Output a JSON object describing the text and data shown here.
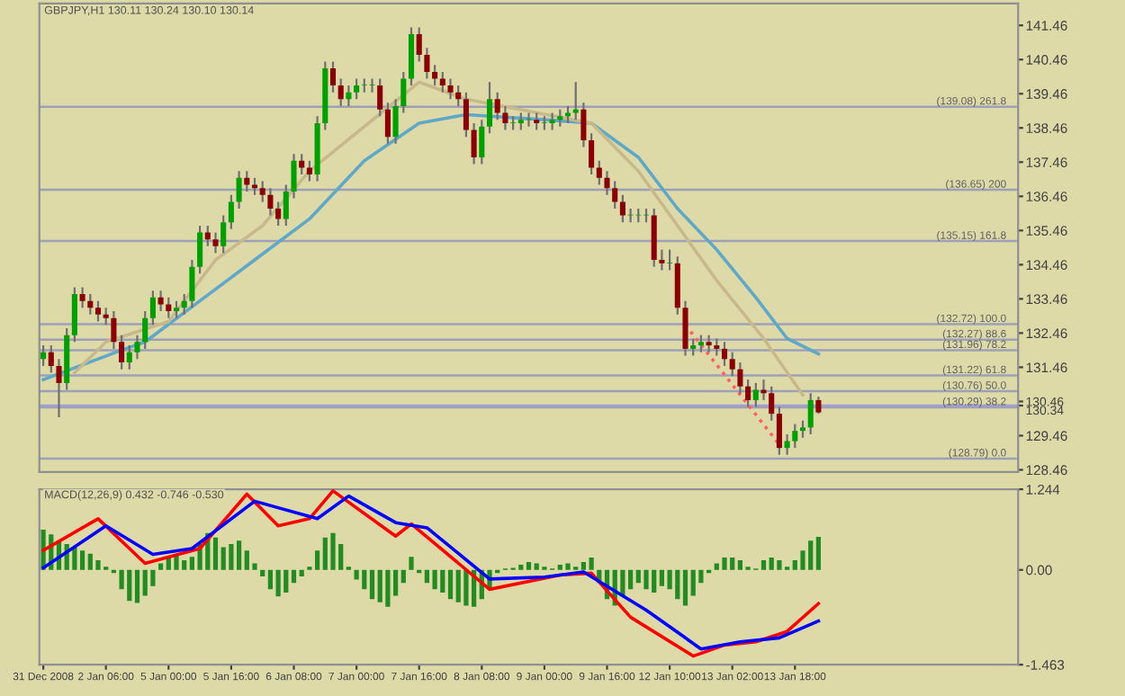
{
  "chart_data": [
    {
      "type": "candlestick",
      "title": "GBPJPY,H1 130.11 130.24 130.10 130.14",
      "categories": [
        null,
        null,
        null,
        null,
        null,
        null,
        null,
        null,
        null,
        null,
        null,
        null,
        null,
        null,
        null,
        null,
        null,
        null,
        null,
        null,
        null,
        null,
        null,
        null,
        null,
        null,
        null,
        null,
        null,
        null,
        null,
        null,
        null,
        null,
        null,
        null,
        null,
        null,
        null,
        null,
        null,
        null,
        null,
        null,
        null,
        null,
        null,
        null,
        null,
        null,
        null,
        null,
        null,
        null,
        null,
        null,
        null,
        null,
        null,
        null,
        null,
        null,
        null,
        null,
        null,
        null,
        null,
        null,
        null,
        null,
        null,
        null,
        null,
        null,
        null,
        null,
        null,
        null,
        null,
        null,
        null,
        null,
        null,
        null,
        null,
        null,
        null,
        null,
        null,
        null,
        null,
        null,
        null,
        null,
        null,
        null,
        null,
        null,
        null,
        null,
        null,
        null,
        null,
        null,
        null,
        null,
        null,
        null,
        null,
        null,
        null,
        null,
        null,
        null,
        null,
        null,
        null,
        null,
        null,
        null,
        null,
        null,
        null,
        null,
        null
      ],
      "ohlc": [
        [
          131.7,
          132.1,
          131.5,
          131.9
        ],
        [
          131.9,
          132.1,
          131.3,
          131.5
        ],
        [
          131.5,
          131.7,
          130.0,
          131.0
        ],
        [
          131.0,
          132.6,
          130.8,
          132.4
        ],
        [
          132.4,
          133.8,
          132.2,
          133.6
        ],
        [
          133.6,
          133.8,
          133.2,
          133.4
        ],
        [
          133.4,
          133.6,
          133.0,
          133.2
        ],
        [
          133.2,
          133.4,
          132.8,
          133.0
        ],
        [
          133.0,
          133.2,
          132.7,
          132.9
        ],
        [
          132.9,
          133.1,
          132.0,
          132.2
        ],
        [
          132.2,
          132.4,
          131.4,
          131.6
        ],
        [
          131.6,
          132.1,
          131.4,
          131.9
        ],
        [
          131.9,
          132.4,
          131.7,
          132.2
        ],
        [
          132.2,
          133.1,
          132.0,
          132.9
        ],
        [
          132.9,
          133.7,
          132.7,
          133.5
        ],
        [
          133.5,
          133.7,
          133.1,
          133.3
        ],
        [
          133.3,
          133.5,
          132.9,
          133.1
        ],
        [
          133.1,
          133.4,
          132.9,
          133.2
        ],
        [
          133.2,
          133.6,
          133.0,
          133.4
        ],
        [
          133.4,
          134.6,
          133.2,
          134.4
        ],
        [
          134.4,
          135.6,
          134.2,
          135.4
        ],
        [
          135.4,
          135.6,
          135.0,
          135.2
        ],
        [
          135.2,
          135.4,
          134.8,
          135.0
        ],
        [
          135.0,
          135.9,
          134.8,
          135.7
        ],
        [
          135.7,
          136.5,
          135.5,
          136.3
        ],
        [
          136.3,
          137.2,
          136.1,
          137.0
        ],
        [
          137.0,
          137.2,
          136.6,
          136.8
        ],
        [
          136.8,
          137.0,
          136.5,
          136.7
        ],
        [
          136.7,
          136.9,
          136.3,
          136.5
        ],
        [
          136.5,
          136.7,
          135.9,
          136.1
        ],
        [
          136.1,
          136.3,
          135.6,
          135.8
        ],
        [
          135.8,
          136.8,
          135.6,
          136.6
        ],
        [
          136.6,
          137.7,
          136.4,
          137.5
        ],
        [
          137.5,
          137.7,
          137.1,
          137.3
        ],
        [
          137.3,
          137.5,
          136.9,
          137.1
        ],
        [
          137.1,
          138.8,
          136.9,
          138.6
        ],
        [
          138.6,
          140.4,
          138.4,
          140.2
        ],
        [
          140.2,
          140.4,
          139.5,
          139.7
        ],
        [
          139.7,
          139.9,
          139.1,
          139.3
        ],
        [
          139.3,
          139.7,
          139.1,
          139.5
        ],
        [
          139.5,
          139.9,
          139.3,
          139.7
        ],
        [
          139.7,
          139.9,
          139.5,
          139.7
        ],
        [
          139.7,
          139.9,
          139.5,
          139.7
        ],
        [
          139.7,
          139.9,
          138.8,
          139.0
        ],
        [
          139.0,
          139.2,
          138.0,
          138.2
        ],
        [
          138.2,
          139.3,
          138.0,
          139.1
        ],
        [
          139.1,
          140.1,
          138.9,
          139.9
        ],
        [
          139.9,
          141.4,
          139.7,
          141.2
        ],
        [
          141.2,
          141.4,
          140.4,
          140.6
        ],
        [
          140.6,
          140.8,
          139.9,
          140.1
        ],
        [
          140.1,
          140.3,
          139.7,
          139.9
        ],
        [
          139.9,
          140.1,
          139.5,
          139.7
        ],
        [
          139.7,
          139.9,
          139.3,
          139.5
        ],
        [
          139.5,
          139.7,
          139.1,
          139.3
        ],
        [
          139.3,
          139.5,
          138.2,
          138.4
        ],
        [
          138.4,
          138.6,
          137.4,
          137.6
        ],
        [
          137.6,
          138.7,
          137.4,
          138.5
        ],
        [
          138.5,
          139.8,
          138.3,
          139.3
        ],
        [
          139.3,
          139.5,
          138.7,
          138.9
        ],
        [
          138.9,
          139.1,
          138.4,
          138.6
        ],
        [
          138.6,
          138.8,
          138.4,
          138.6
        ],
        [
          138.6,
          138.9,
          138.4,
          138.7
        ],
        [
          138.7,
          138.9,
          138.5,
          138.7
        ],
        [
          138.7,
          138.9,
          138.4,
          138.6
        ],
        [
          138.6,
          138.8,
          138.4,
          138.6
        ],
        [
          138.6,
          138.9,
          138.4,
          138.7
        ],
        [
          138.7,
          139.0,
          138.5,
          138.8
        ],
        [
          138.8,
          139.1,
          138.6,
          138.9
        ],
        [
          138.9,
          139.8,
          138.7,
          139.0
        ],
        [
          139.0,
          139.2,
          137.9,
          138.1
        ],
        [
          138.1,
          138.3,
          137.1,
          137.3
        ],
        [
          137.3,
          137.5,
          136.8,
          137.0
        ],
        [
          137.0,
          137.2,
          136.5,
          136.7
        ],
        [
          136.7,
          136.9,
          136.1,
          136.3
        ],
        [
          136.3,
          136.5,
          135.7,
          135.9
        ],
        [
          135.9,
          136.1,
          135.7,
          135.9
        ],
        [
          135.9,
          136.1,
          135.7,
          135.9
        ],
        [
          135.9,
          136.1,
          135.7,
          135.9
        ],
        [
          135.9,
          136.1,
          134.4,
          134.6
        ],
        [
          134.6,
          134.9,
          134.3,
          134.5
        ],
        [
          134.5,
          134.9,
          134.3,
          134.5
        ],
        [
          134.5,
          134.7,
          133.0,
          133.2
        ],
        [
          133.2,
          133.4,
          131.8,
          132.0
        ],
        [
          132.0,
          132.3,
          131.8,
          132.1
        ],
        [
          132.1,
          132.4,
          131.9,
          132.2
        ],
        [
          132.2,
          132.4,
          131.9,
          132.1
        ],
        [
          132.1,
          132.3,
          131.8,
          132.0
        ],
        [
          132.0,
          132.2,
          131.5,
          131.7
        ],
        [
          131.7,
          131.9,
          131.2,
          131.4
        ],
        [
          131.4,
          131.6,
          130.7,
          130.9
        ],
        [
          130.9,
          131.1,
          130.3,
          130.5
        ],
        [
          130.5,
          131.0,
          130.3,
          130.8
        ],
        [
          130.8,
          131.1,
          130.5,
          130.7
        ],
        [
          130.7,
          130.9,
          129.9,
          130.1
        ],
        [
          130.1,
          130.3,
          128.9,
          129.1
        ],
        [
          129.1,
          129.5,
          128.9,
          129.3
        ],
        [
          129.3,
          129.8,
          129.1,
          129.6
        ],
        [
          129.6,
          129.9,
          129.4,
          129.7
        ],
        [
          129.7,
          130.7,
          129.5,
          130.5
        ],
        [
          130.5,
          130.6,
          130.1,
          130.14
        ],
        null,
        null,
        null,
        null,
        null,
        null,
        null,
        null,
        null,
        null,
        null,
        null,
        null,
        null,
        null,
        null,
        null,
        null,
        null,
        null,
        null,
        null,
        null,
        null,
        null
      ],
      "series": [
        {
          "type": "line",
          "color": "#5fa8c8",
          "values": [
            131.1,
            null,
            null,
            null,
            null,
            null,
            null,
            null,
            null,
            null,
            131.96,
            null,
            null,
            132.2,
            null,
            null,
            null,
            null,
            null,
            null,
            133.4,
            null,
            null,
            null,
            null,
            null,
            null,
            134.6,
            null,
            null,
            null,
            null,
            null,
            null,
            135.8,
            null,
            null,
            null,
            null,
            null,
            null,
            137.5,
            null,
            null,
            null,
            null,
            null,
            null,
            138.6,
            null,
            null,
            null,
            null,
            null,
            138.85,
            null,
            null,
            null,
            null,
            null,
            null,
            null,
            null,
            null,
            138.7,
            null,
            null,
            null,
            null,
            null,
            138.6,
            null,
            null,
            null,
            null,
            null,
            137.6,
            null,
            null,
            null,
            null,
            136.1,
            null,
            null,
            null,
            null,
            134.9,
            null,
            null,
            null,
            null,
            133.5,
            null,
            null,
            null,
            132.3,
            null,
            null,
            null,
            131.85,
            null,
            null,
            null,
            null,
            null,
            null,
            null,
            null,
            null,
            null,
            null,
            null,
            null,
            null,
            null,
            null,
            null,
            null,
            null,
            null,
            null,
            null,
            null,
            null,
            null
          ]
        },
        {
          "type": "line",
          "color": "#c8b98c",
          "values": [
            null,
            null,
            null,
            null,
            131.3,
            null,
            null,
            null,
            132.2,
            null,
            null,
            null,
            null,
            null,
            null,
            null,
            132.8,
            null,
            null,
            null,
            null,
            null,
            134.6,
            null,
            null,
            null,
            null,
            null,
            135.6,
            null,
            null,
            null,
            null,
            null,
            137.2,
            null,
            null,
            null,
            null,
            null,
            null,
            138.5,
            null,
            null,
            null,
            null,
            null,
            null,
            139.8,
            null,
            null,
            null,
            null,
            null,
            139.3,
            null,
            null,
            null,
            null,
            null,
            null,
            null,
            null,
            null,
            null,
            null,
            null,
            null,
            null,
            null,
            138.6,
            null,
            null,
            null,
            null,
            null,
            137.2,
            null,
            null,
            null,
            null,
            135.6,
            null,
            null,
            null,
            null,
            134.0,
            null,
            null,
            null,
            null,
            null,
            132.3,
            null,
            null,
            null,
            null,
            130.65,
            null,
            null,
            null,
            null,
            null,
            null,
            null,
            null,
            null,
            null,
            null,
            null,
            null,
            null,
            null,
            null,
            null,
            null,
            null,
            null,
            null,
            null,
            null,
            null,
            null,
            null,
            null
          ]
        },
        {
          "type": "line",
          "color": "#ff6060",
          "line_style": "dotted",
          "values": [
            null,
            null,
            null,
            null,
            null,
            null,
            null,
            null,
            null,
            null,
            null,
            null,
            null,
            null,
            null,
            null,
            null,
            null,
            null,
            null,
            null,
            null,
            null,
            null,
            null,
            null,
            null,
            null,
            null,
            null,
            null,
            null,
            null,
            null,
            null,
            null,
            null,
            null,
            null,
            null,
            null,
            null,
            null,
            null,
            null,
            null,
            null,
            null,
            null,
            null,
            null,
            null,
            null,
            null,
            null,
            null,
            null,
            null,
            null,
            null,
            null,
            null,
            null,
            null,
            null,
            null,
            null,
            null,
            null,
            null,
            null,
            null,
            null,
            null,
            null,
            null,
            null,
            null,
            null,
            null,
            null,
            null,
            132.7,
            null,
            null,
            null,
            null,
            null,
            null,
            null,
            null,
            null,
            null,
            null,
            129.2,
            null,
            null,
            null,
            null,
            null,
            null,
            null,
            null,
            null,
            null,
            null,
            null,
            null,
            null,
            null,
            null,
            null,
            null,
            null,
            null,
            null,
            null,
            null,
            null,
            null,
            null,
            null,
            null,
            null,
            null
          ]
        }
      ],
      "ylim": [
        128.4,
        142.1
      ],
      "yticks": [
        128.46,
        129.46,
        {
          "value": 130.34,
          "label": "130.34"
        },
        130.46,
        131.46,
        132.46,
        133.46,
        134.46,
        135.46,
        136.46,
        137.46,
        138.46,
        139.46,
        140.46,
        141.46
      ],
      "ref_lines": [
        {
          "axis": "y",
          "value": 139.08,
          "label": "(139.08) 261.8",
          "color": "#9ea0b8"
        },
        {
          "axis": "y",
          "value": 136.65,
          "label": "(136.65) 200",
          "color": "#9ea0b8"
        },
        {
          "axis": "y",
          "value": 135.15,
          "label": "(135.15) 161.8",
          "color": "#9ea0b8"
        },
        {
          "axis": "y",
          "value": 132.72,
          "label": "(132.72) 100.0",
          "color": "#9ea0b8"
        },
        {
          "axis": "y",
          "value": 132.27,
          "label": "(132.27) 88.6",
          "color": "#9ea0b8"
        },
        {
          "axis": "y",
          "value": 131.96,
          "label": "(131.96) 78.2",
          "color": "#9ea0b8"
        },
        {
          "axis": "y",
          "value": 131.22,
          "label": "(131.22) 61.8",
          "color": "#9ea0b8"
        },
        {
          "axis": "y",
          "value": 130.76,
          "label": "(130.76) 50.0",
          "color": "#9ea0b8"
        },
        {
          "axis": "y",
          "value": 130.29,
          "label": "(130.29) 38.2",
          "color": "#9ea0b8"
        },
        {
          "axis": "y",
          "value": 128.79,
          "label": "(128.79) 0.0",
          "color": "#9ea0b8"
        },
        {
          "axis": "y",
          "value": 130.34,
          "color": "#a0a0d0"
        }
      ],
      "tick_labels": "y",
      "grid": false,
      "legend": false
    },
    {
      "type": "bar",
      "title": "MACD(12,26,9) 0.432 -0.746 -0.530",
      "categories": [
        "31 Dec 2008",
        null,
        null,
        null,
        null,
        null,
        null,
        null,
        "2 Jan 06:00",
        null,
        null,
        null,
        null,
        null,
        null,
        null,
        "5 Jan 00:00",
        null,
        null,
        null,
        null,
        null,
        null,
        null,
        "5 Jan 16:00",
        null,
        null,
        null,
        null,
        null,
        null,
        null,
        "6 Jan 08:00",
        null,
        null,
        null,
        null,
        null,
        null,
        null,
        "7 Jan 00:00",
        null,
        null,
        null,
        null,
        null,
        null,
        null,
        "7 Jan 16:00",
        null,
        null,
        null,
        null,
        null,
        null,
        null,
        "8 Jan 08:00",
        null,
        null,
        null,
        null,
        null,
        null,
        null,
        "9 Jan 00:00",
        null,
        null,
        null,
        null,
        null,
        null,
        null,
        "9 Jan 16:00",
        null,
        null,
        null,
        null,
        null,
        null,
        null,
        "12 Jan 10:00",
        null,
        null,
        null,
        null,
        null,
        null,
        null,
        "13 Jan 02:00",
        null,
        null,
        null,
        null,
        null,
        null,
        null,
        "13 Jan 18:00",
        null,
        null,
        null,
        null,
        null,
        null,
        null,
        null,
        null,
        null,
        null,
        null,
        null,
        null,
        null,
        null,
        null,
        null,
        null,
        null,
        null,
        null,
        null,
        null,
        null,
        null,
        null,
        null
      ],
      "series": [
        {
          "type": "bar",
          "color": "#228b22",
          "values": [
            0.62,
            0.55,
            0.45,
            0.4,
            0.35,
            0.3,
            0.25,
            0.15,
            0.05,
            -0.05,
            -0.3,
            -0.48,
            -0.51,
            -0.4,
            -0.25,
            0.1,
            0.2,
            0.24,
            0.15,
            0.2,
            0.4,
            0.57,
            0.5,
            0.35,
            0.4,
            0.45,
            0.3,
            0.1,
            -0.1,
            -0.3,
            -0.41,
            -0.35,
            -0.2,
            -0.1,
            0.05,
            0.3,
            0.5,
            0.57,
            0.4,
            0.05,
            -0.15,
            -0.3,
            -0.45,
            -0.5,
            -0.57,
            -0.4,
            -0.2,
            0.2,
            -0.05,
            -0.2,
            -0.3,
            -0.35,
            -0.45,
            -0.5,
            -0.55,
            -0.57,
            -0.45,
            -0.3,
            -0.05,
            0.02,
            0.03,
            0.08,
            0.12,
            0.1,
            0.05,
            0.02,
            0.08,
            0.1,
            0.05,
            0.12,
            0.19,
            -0.2,
            -0.45,
            -0.55,
            -0.4,
            -0.3,
            -0.2,
            -0.3,
            -0.35,
            -0.25,
            -0.3,
            -0.45,
            -0.55,
            -0.4,
            -0.2,
            -0.05,
            0.1,
            0.19,
            0.19,
            0.15,
            0.05,
            0.02,
            0.15,
            0.19,
            0.15,
            0.05,
            0.15,
            0.3,
            0.45,
            0.51,
            null,
            null,
            null,
            null,
            null,
            null,
            null,
            null,
            null,
            null,
            null,
            null,
            null,
            null,
            null,
            null,
            null,
            null,
            null,
            null,
            null,
            null,
            null,
            null,
            null
          ]
        },
        {
          "type": "line",
          "color": "#ff0000",
          "values": [
            0.3,
            null,
            null,
            null,
            null,
            null,
            null,
            0.79,
            null,
            null,
            null,
            null,
            null,
            0.1,
            null,
            null,
            null,
            null,
            null,
            null,
            0.33,
            null,
            null,
            null,
            null,
            null,
            1.17,
            null,
            null,
            null,
            0.68,
            null,
            null,
            null,
            0.79,
            null,
            null,
            1.22,
            null,
            null,
            null,
            null,
            null,
            null,
            null,
            0.52,
            null,
            0.71,
            null,
            null,
            null,
            null,
            null,
            null,
            null,
            null,
            null,
            -0.3,
            null,
            null,
            null,
            null,
            null,
            null,
            null,
            null,
            -0.08,
            null,
            null,
            null,
            -0.05,
            null,
            null,
            null,
            null,
            -0.73,
            null,
            null,
            null,
            null,
            null,
            null,
            null,
            -1.33,
            null,
            null,
            null,
            -1.16,
            null,
            null,
            null,
            -1.11,
            null,
            null,
            null,
            -0.95,
            null,
            null,
            null,
            -0.52,
            null,
            null,
            null,
            null,
            null,
            null,
            null,
            null,
            null,
            null,
            null,
            null,
            null,
            null,
            null,
            null,
            null,
            null,
            null,
            null,
            null,
            null,
            null,
            null,
            null
          ]
        },
        {
          "type": "line",
          "color": "#0000ff",
          "values": [
            0.03,
            null,
            null,
            null,
            null,
            null,
            null,
            null,
            0.68,
            null,
            null,
            null,
            null,
            null,
            0.24,
            null,
            null,
            null,
            null,
            0.33,
            null,
            null,
            null,
            null,
            null,
            null,
            null,
            1.06,
            null,
            null,
            null,
            null,
            null,
            null,
            null,
            0.79,
            null,
            null,
            null,
            1.14,
            null,
            null,
            null,
            null,
            null,
            0.73,
            null,
            null,
            null,
            0.65,
            null,
            null,
            null,
            null,
            null,
            null,
            null,
            -0.14,
            null,
            null,
            null,
            null,
            null,
            null,
            -0.11,
            null,
            null,
            null,
            null,
            -0.03,
            null,
            null,
            null,
            null,
            null,
            null,
            null,
            -0.62,
            null,
            null,
            null,
            null,
            null,
            null,
            -1.22,
            null,
            null,
            null,
            null,
            -1.11,
            null,
            null,
            null,
            null,
            -1.05,
            null,
            null,
            null,
            null,
            -0.79,
            null,
            null,
            null,
            null,
            null,
            null,
            null,
            null,
            null,
            null,
            null,
            null,
            null,
            null,
            null,
            null,
            null,
            null,
            null,
            null,
            null,
            null,
            null,
            null,
            null
          ]
        }
      ],
      "ylim": [
        -1.463,
        1.244
      ],
      "yticks": [
        -1.463,
        {
          "value": 0,
          "label": "0.00"
        },
        1.244
      ],
      "grid": false,
      "legend": false
    }
  ]
}
